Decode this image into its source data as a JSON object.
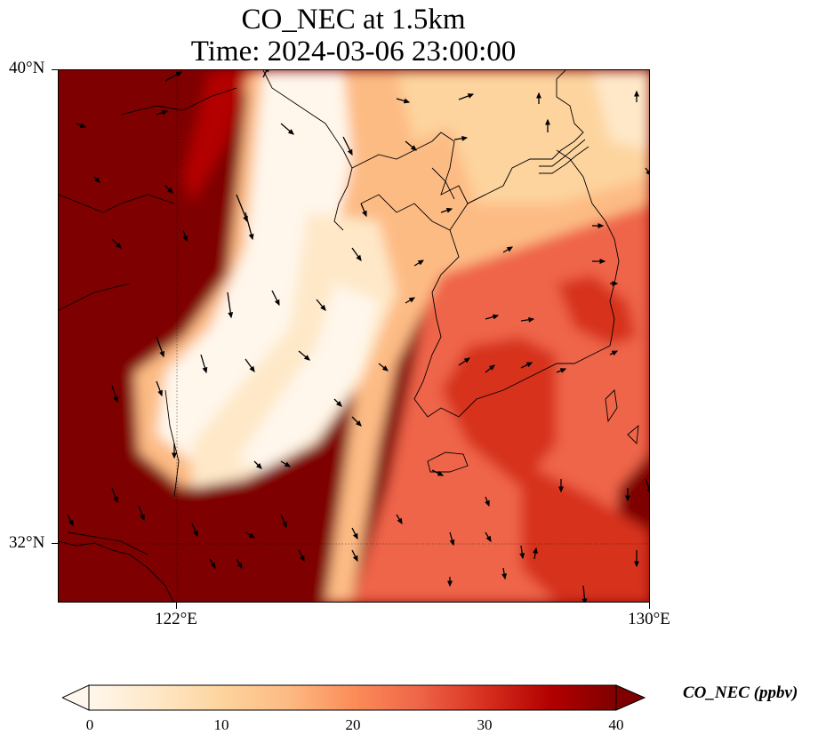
{
  "title_line1": "CO_NEC at 1.5km",
  "title_line2": "Time: 2024-03-06 23:00:00",
  "axes": {
    "lat_ticks": [
      "40°N",
      "32°N"
    ],
    "lon_ticks": [
      "122°E",
      "130°E"
    ],
    "extent": {
      "lon_min": 120,
      "lon_max": 130,
      "lat_min": 31,
      "lat_max": 40
    }
  },
  "colorbar": {
    "label": "CO_NEC (ppbv)",
    "ticks": [
      "0",
      "10",
      "20",
      "30",
      "40"
    ],
    "min": 0,
    "max": 40,
    "extend": "both",
    "colormap": [
      "#fff7ec",
      "#fee8c8",
      "#fdd49e",
      "#fdbb84",
      "#fc8d59",
      "#ef6548",
      "#d7301f",
      "#b30000",
      "#7f0000"
    ]
  }
}
